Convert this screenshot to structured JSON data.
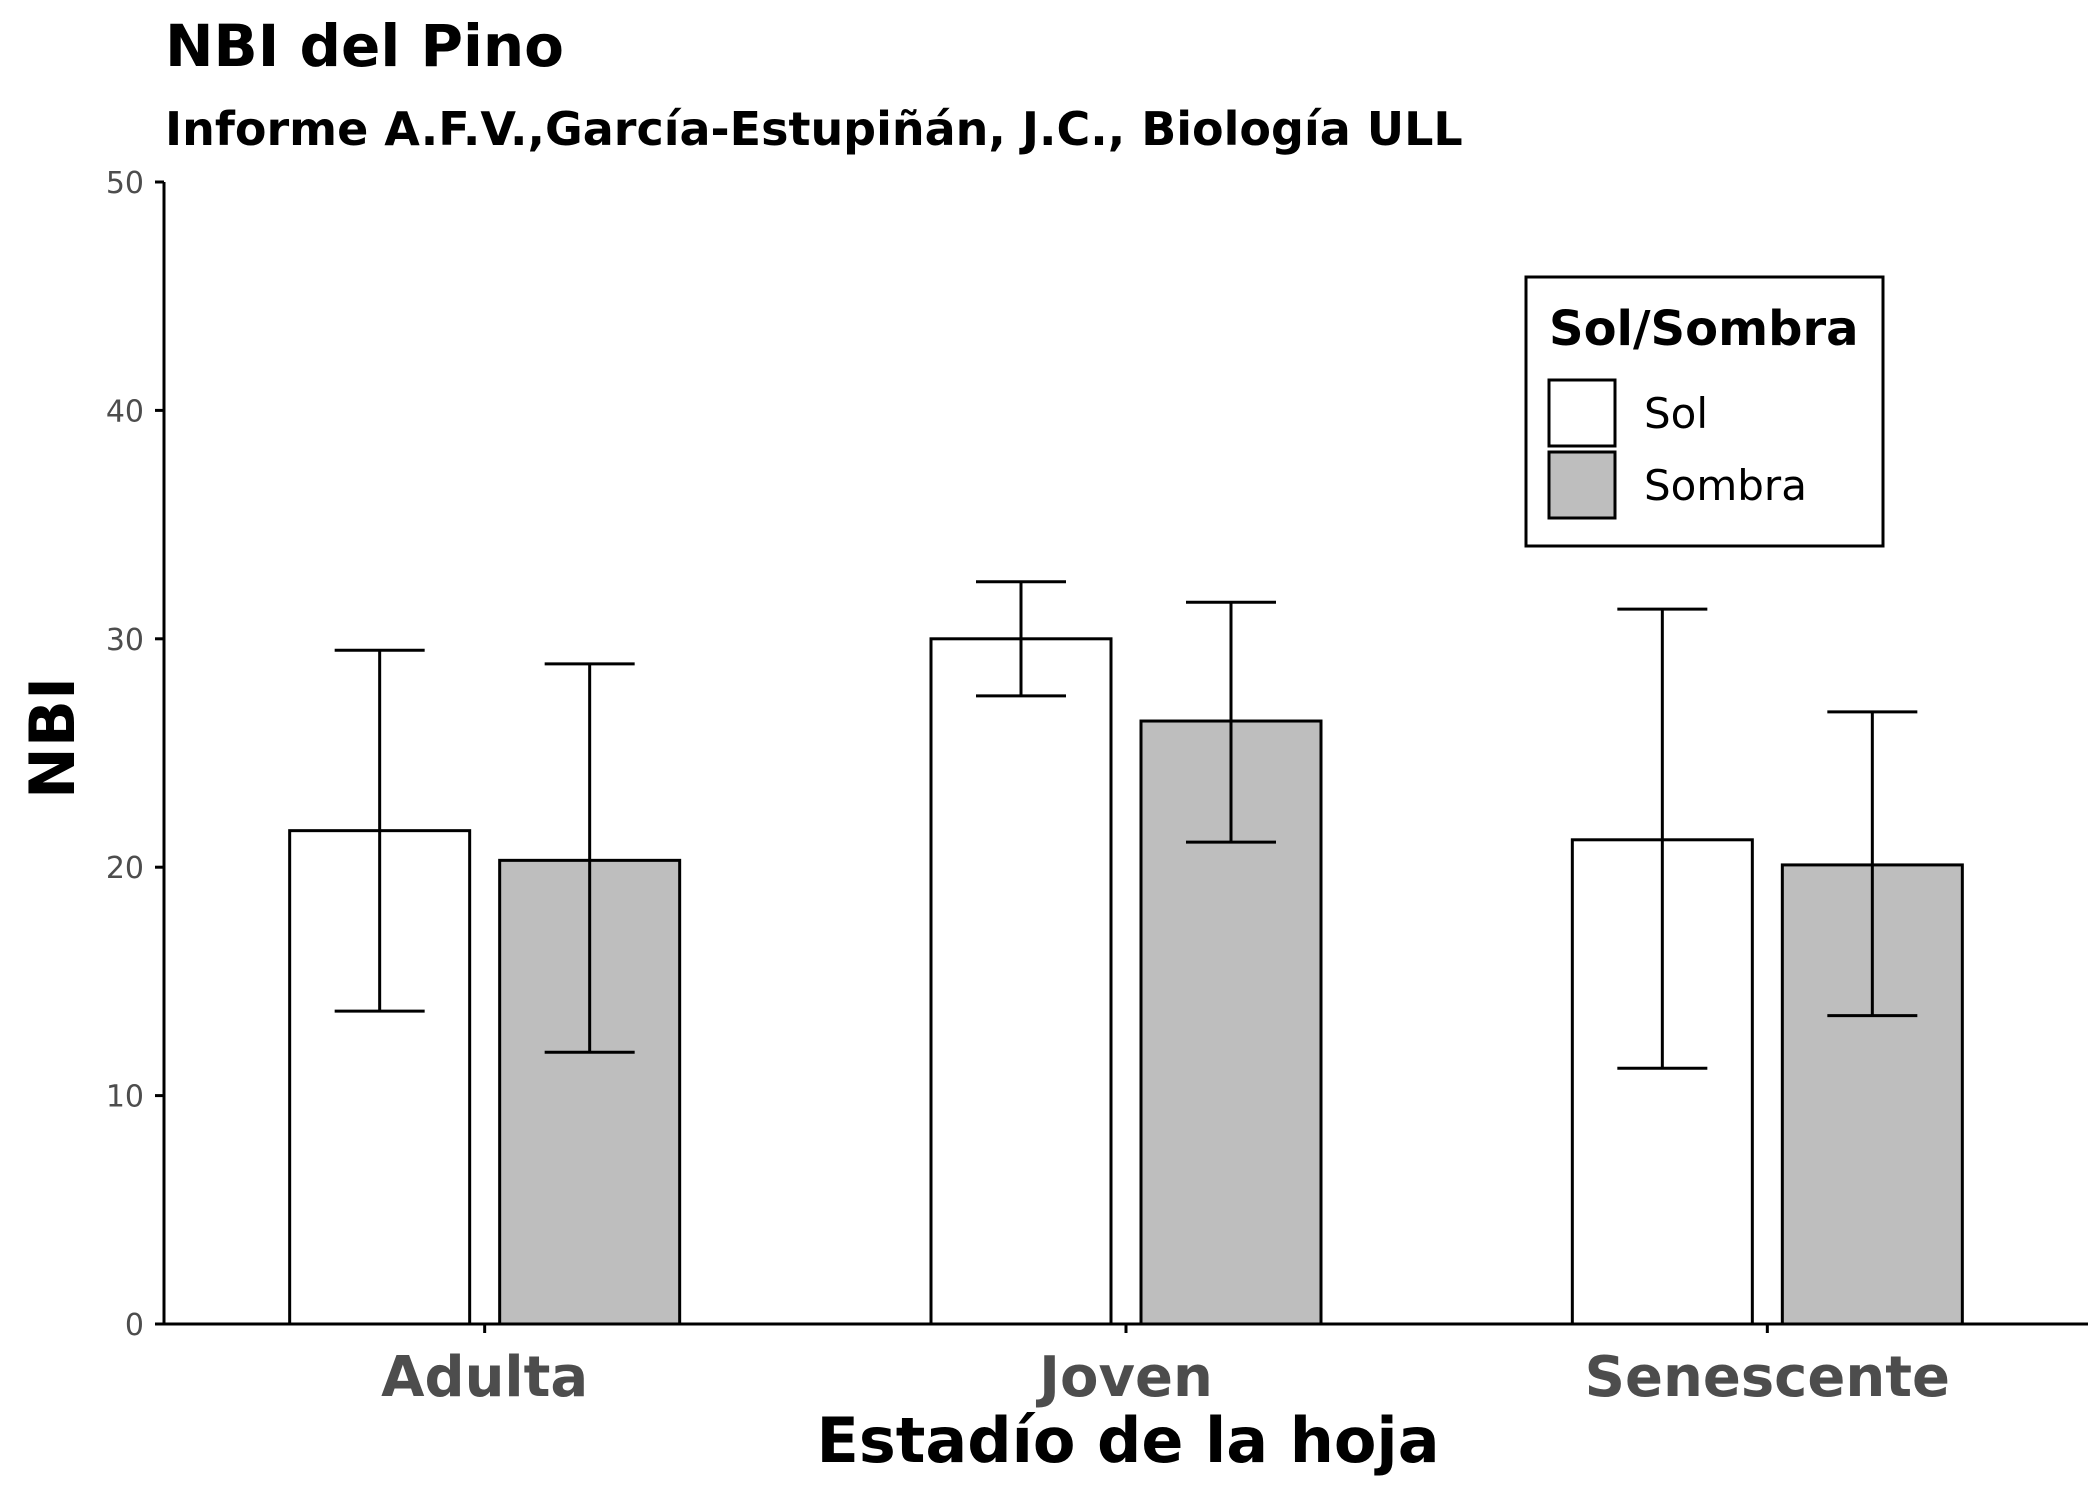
{
  "chart_data": {
    "type": "bar",
    "title": "NBI del Pino",
    "subtitle": "Informe A.F.V.,García-Estupiñán, J.C., Biología ULL",
    "xlabel": "Estadío de la hoja",
    "ylabel": "NBI",
    "ylim": [
      0,
      50
    ],
    "yticks": [
      "0",
      "10",
      "20",
      "30",
      "40",
      "50"
    ],
    "grid": false,
    "categories": [
      "Adulta",
      "Joven",
      "Senescente"
    ],
    "legend": {
      "title": "Sol/Sombra",
      "position": "top-right"
    },
    "series": [
      {
        "name": "Sol",
        "color": "#ffffff",
        "values": [
          21.6,
          30.0,
          21.2
        ],
        "error_low": [
          13.7,
          27.5,
          11.2
        ],
        "error_high": [
          29.5,
          32.5,
          31.3
        ]
      },
      {
        "name": "Sombra",
        "color": "#bebebe",
        "values": [
          20.3,
          26.4,
          20.1
        ],
        "error_low": [
          11.9,
          21.1,
          13.5
        ],
        "error_high": [
          28.9,
          31.6,
          26.8
        ]
      }
    ]
  }
}
